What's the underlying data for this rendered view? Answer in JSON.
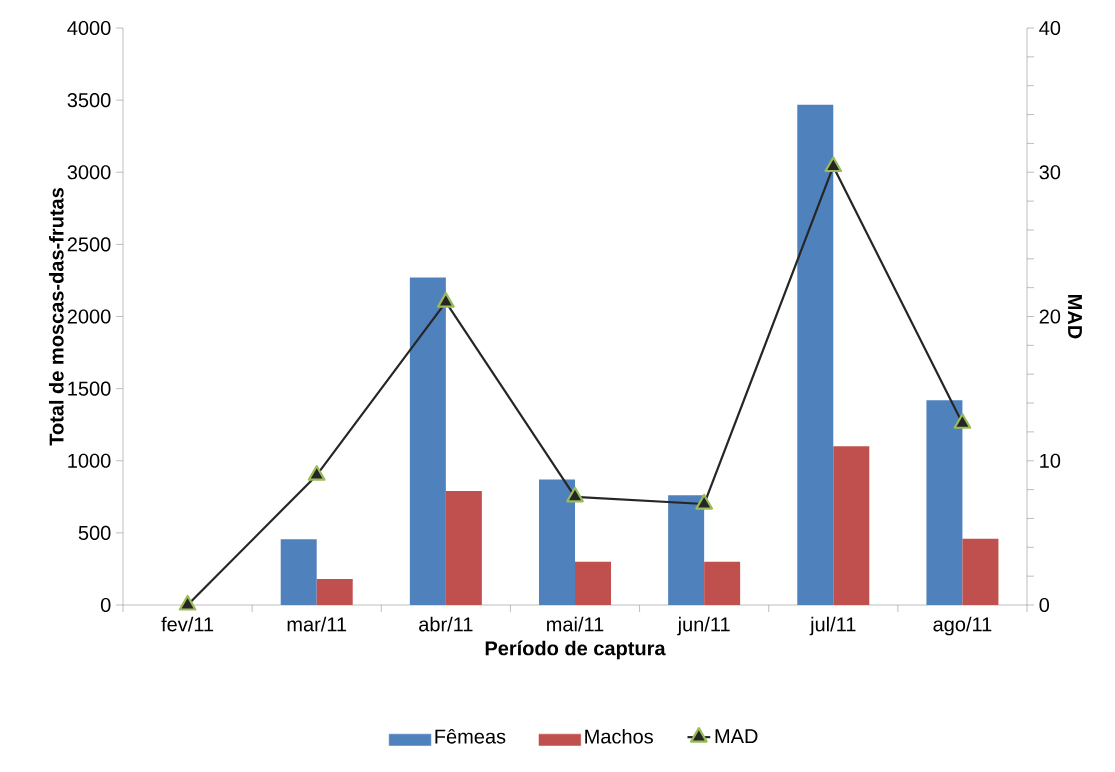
{
  "chart_data": {
    "type": "bar",
    "xlabel": "Período de captura",
    "ylabel": "Total de moscas-das-frutas",
    "y2label": "MAD",
    "categories": [
      "fev/11",
      "mar/11",
      "abr/11",
      "mai/11",
      "jun/11",
      "jul/11",
      "ago/11"
    ],
    "series": [
      {
        "name": "Fêmeas",
        "color": "#4f81bd",
        "values": [
          0,
          455,
          2270,
          870,
          760,
          3470,
          1420
        ]
      },
      {
        "name": "Machos",
        "color": "#c0504d",
        "values": [
          0,
          180,
          790,
          300,
          300,
          1100,
          460
        ]
      },
      {
        "name": "MAD",
        "type": "line",
        "axis": "y2",
        "color": "#262626",
        "marker": "triangle",
        "line_style": "solid",
        "values": [
          0,
          9.0,
          21.0,
          7.5,
          7.0,
          30.4,
          12.6
        ]
      }
    ],
    "ylim": [
      0,
      4000
    ],
    "yticks": [
      0,
      500,
      1000,
      1500,
      2000,
      2500,
      3000,
      3500,
      4000
    ],
    "y2lim": [
      0,
      40
    ],
    "y2ticks": [
      0,
      {
        "value": 2,
        "label": null
      },
      {
        "value": 4,
        "label": null
      },
      {
        "value": 6,
        "label": null
      },
      {
        "value": 8,
        "label": null
      },
      10,
      {
        "value": 12,
        "label": null
      },
      {
        "value": 14,
        "label": null
      },
      {
        "value": 16,
        "label": null
      },
      {
        "value": 18,
        "label": null
      },
      20,
      {
        "value": 22,
        "label": null
      },
      {
        "value": 24,
        "label": null
      },
      {
        "value": 26,
        "label": null
      },
      {
        "value": 28,
        "label": null
      },
      30,
      {
        "value": 32,
        "label": null
      },
      {
        "value": 34,
        "label": null
      },
      {
        "value": 36,
        "label": null
      },
      {
        "value": 38,
        "label": null
      },
      40
    ],
    "legend": "bottom"
  }
}
